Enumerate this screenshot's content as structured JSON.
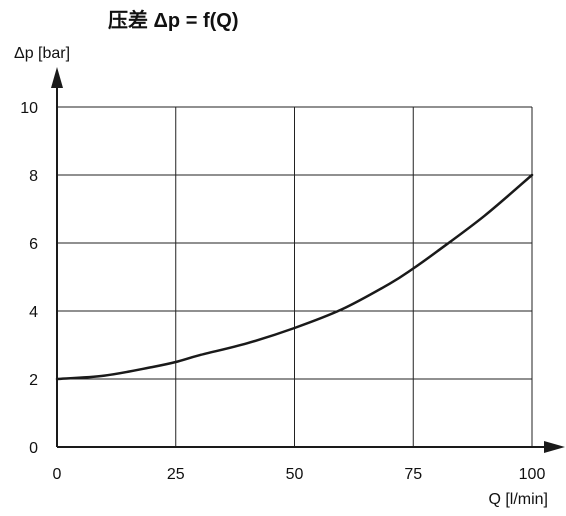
{
  "chart_data": {
    "type": "line",
    "title": "压差 Δp = f(Q)",
    "xlabel": "Q [l/min]",
    "ylabel": "Δp [bar]",
    "xlim": [
      0,
      100
    ],
    "ylim": [
      0,
      10
    ],
    "xticks": [
      0,
      25,
      50,
      75,
      100
    ],
    "yticks": [
      0,
      2,
      4,
      6,
      8,
      10
    ],
    "grid": true,
    "series": [
      {
        "x": [
          0,
          10,
          20,
          25,
          30,
          40,
          50,
          60,
          70,
          75,
          80,
          90,
          100
        ],
        "y": [
          2.0,
          2.1,
          2.35,
          2.5,
          2.7,
          3.05,
          3.5,
          4.05,
          4.8,
          5.25,
          5.75,
          6.8,
          8.0
        ]
      }
    ]
  }
}
